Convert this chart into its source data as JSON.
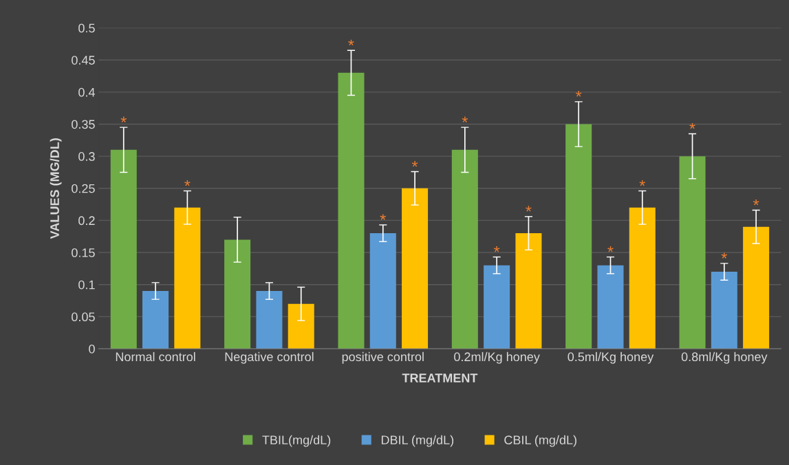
{
  "chart_data": {
    "type": "bar",
    "xlabel": "TREATMENT",
    "ylabel": "VALUES (MG/DL)",
    "categories": [
      "Normal control",
      "Negative control",
      "positive control",
      "0.2ml/Kg honey",
      "0.5ml/Kg honey",
      "0.8ml/Kg honey"
    ],
    "series": [
      {
        "name": "TBIL(mg/dL)",
        "color": "#70ad47",
        "values": [
          0.31,
          0.17,
          0.43,
          0.31,
          0.35,
          0.3
        ],
        "errors": [
          0.035,
          0.035,
          0.035,
          0.035,
          0.035,
          0.035
        ],
        "value_labels": [
          "*",
          null,
          "*",
          "*",
          "*",
          "*"
        ]
      },
      {
        "name": "DBIL (mg/dL)",
        "color": "#5b9bd5",
        "values": [
          0.09,
          0.09,
          0.18,
          0.13,
          0.13,
          0.12
        ],
        "errors": [
          0.013,
          0.013,
          0.013,
          0.013,
          0.013,
          0.013
        ],
        "value_labels": [
          null,
          null,
          "*",
          "*",
          "*",
          "*"
        ]
      },
      {
        "name": "CBIL (mg/dL)",
        "color": "#ffc000",
        "values": [
          0.22,
          0.07,
          0.25,
          0.18,
          0.22,
          0.19
        ],
        "errors": [
          0.026,
          0.026,
          0.026,
          0.026,
          0.026,
          0.026
        ],
        "value_labels": [
          "*",
          null,
          "*",
          "*",
          "*",
          "*"
        ]
      }
    ],
    "ylim": [
      0,
      0.5
    ],
    "yticks": [
      0,
      0.05,
      0.1,
      0.15,
      0.2,
      0.25,
      0.3,
      0.35,
      0.4,
      0.45,
      0.5
    ],
    "grid": "y",
    "legend": "bottom"
  }
}
